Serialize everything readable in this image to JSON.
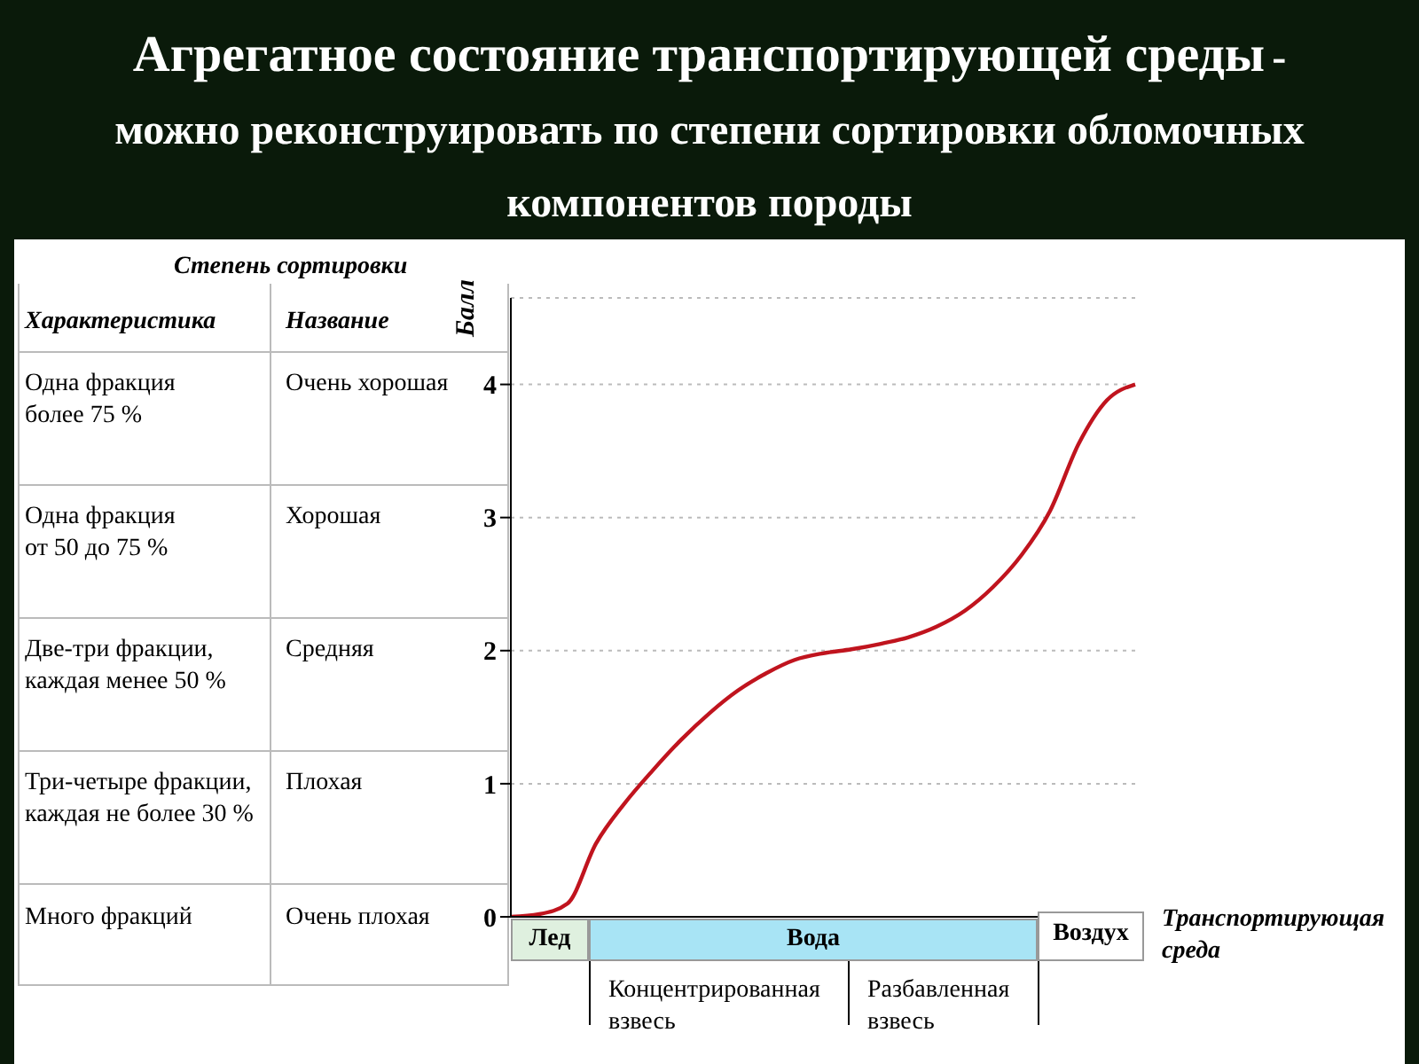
{
  "chart_data": {
    "type": "line",
    "title": "Агрегатное состояние транспортирующей среды",
    "subtitle": "- можно реконструировать по степени сортировки обломочных компонентов породы",
    "ylabel": "Балл",
    "xlabel": "Транспортирующая среда",
    "categories": [
      null,
      null,
      null,
      null,
      null,
      null,
      null,
      null,
      null,
      null,
      null,
      null,
      null,
      null,
      null,
      null,
      null,
      null,
      null,
      null,
      null,
      null,
      null
    ],
    "series": [
      {
        "color": "#c0141e",
        "values": [
          0,
          0.02,
          0.1,
          0.55,
          0.85,
          1.1,
          1.33,
          1.53,
          1.7,
          1.83,
          1.93,
          1.98,
          2.01,
          2.05,
          2.1,
          2.18,
          2.3,
          2.48,
          2.72,
          3.05,
          3.55,
          3.88,
          4.0
        ]
      }
    ],
    "ylim": [
      0,
      4.65
    ],
    "yticks": [
      0,
      1,
      2,
      3,
      4
    ],
    "grid": "y",
    "marker": "none",
    "line_style": "solid",
    "annotations": [
      "Степень сортировки",
      "Характеристика",
      "Название",
      "Одна фракция\nболее 75 %",
      "Очень хорошая",
      "Одна фракция\nот 50 до 75 %",
      "Хорошая",
      "Две-три фракции,\nкаждая менее 50 %",
      "Средняя",
      "Три-четыре фракции,\nкаждая не более 30 %",
      "Плохая",
      "Много фракций",
      "Очень плохая",
      "Лед",
      "Вода",
      "Воздух",
      "Концентрированная\nвзвесь",
      "Разбавленная\nвзвесь"
    ]
  }
}
